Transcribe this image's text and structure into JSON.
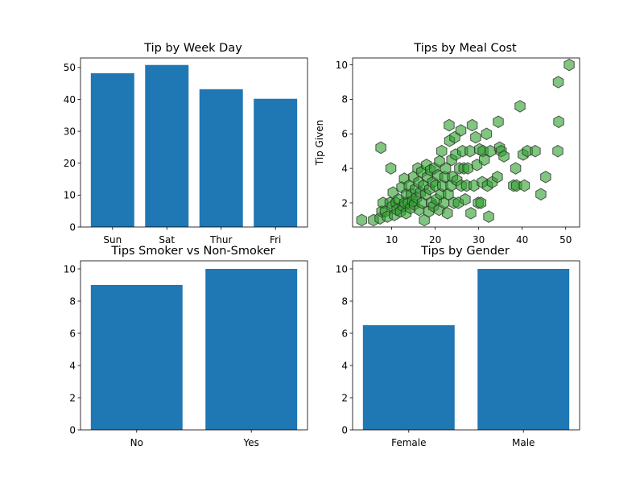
{
  "chart_data": [
    {
      "type": "bar",
      "title": "Tip by Week Day",
      "categories": [
        "Sun",
        "Sat",
        "Thur",
        "Fri"
      ],
      "values": [
        48.2,
        50.8,
        43.2,
        40.2
      ],
      "ylim": [
        0,
        53
      ],
      "yticks": [
        0,
        10,
        20,
        30,
        40,
        50
      ],
      "ylabel": "",
      "color": "#1f77b4",
      "grid": false
    },
    {
      "type": "scatter",
      "title": "Tips by Meal Cost",
      "xlabel": "",
      "ylabel": "Tip Given",
      "xlim": [
        1,
        53.2
      ],
      "ylim": [
        0.6,
        10.4
      ],
      "xticks": [
        10,
        20,
        30,
        40,
        50
      ],
      "yticks": [
        2,
        4,
        6,
        8,
        10
      ],
      "marker": "hexagon",
      "color": "#2ca02c",
      "edgecolor": "#2f2f2f",
      "alpha": 0.6,
      "grid": false,
      "points": [
        [
          3.1,
          1.0
        ],
        [
          5.8,
          1.0
        ],
        [
          7.3,
          1.1
        ],
        [
          7.5,
          5.2
        ],
        [
          7.7,
          1.5
        ],
        [
          8.0,
          2.0
        ],
        [
          8.5,
          1.5
        ],
        [
          9.0,
          1.2
        ],
        [
          9.6,
          2.0
        ],
        [
          9.8,
          4.0
        ],
        [
          10.1,
          1.8
        ],
        [
          10.3,
          2.6
        ],
        [
          10.6,
          1.3
        ],
        [
          11.0,
          2.0
        ],
        [
          11.2,
          1.6
        ],
        [
          11.6,
          2.2
        ],
        [
          12.0,
          1.5
        ],
        [
          12.3,
          2.9
        ],
        [
          12.6,
          1.8
        ],
        [
          12.9,
          3.4
        ],
        [
          13.0,
          2.0
        ],
        [
          13.3,
          1.4
        ],
        [
          13.4,
          2.5
        ],
        [
          13.8,
          2.0
        ],
        [
          14.0,
          3.0
        ],
        [
          14.3,
          1.7
        ],
        [
          14.5,
          2.5
        ],
        [
          14.8,
          2.1
        ],
        [
          15.0,
          3.5
        ],
        [
          15.2,
          1.9
        ],
        [
          15.4,
          2.8
        ],
        [
          15.7,
          2.3
        ],
        [
          16.0,
          4.0
        ],
        [
          16.2,
          3.2
        ],
        [
          16.3,
          1.6
        ],
        [
          16.6,
          2.6
        ],
        [
          16.9,
          3.8
        ],
        [
          17.0,
          2.0
        ],
        [
          17.3,
          3.0
        ],
        [
          17.5,
          1.0
        ],
        [
          17.8,
          2.5
        ],
        [
          18.0,
          4.2
        ],
        [
          18.2,
          3.5
        ],
        [
          18.5,
          1.5
        ],
        [
          18.7,
          2.8
        ],
        [
          18.9,
          3.9
        ],
        [
          19.1,
          2.0
        ],
        [
          19.4,
          3.2
        ],
        [
          19.6,
          1.8
        ],
        [
          19.8,
          4.0
        ],
        [
          20.1,
          3.0
        ],
        [
          20.3,
          2.2
        ],
        [
          20.6,
          3.6
        ],
        [
          20.9,
          1.6
        ],
        [
          21.0,
          4.4
        ],
        [
          21.3,
          2.5
        ],
        [
          21.5,
          5.0
        ],
        [
          21.7,
          3.0
        ],
        [
          22.0,
          2.0
        ],
        [
          22.2,
          3.5
        ],
        [
          22.4,
          4.0
        ],
        [
          22.8,
          1.4
        ],
        [
          23.0,
          2.5
        ],
        [
          23.2,
          6.5
        ],
        [
          23.3,
          5.6
        ],
        [
          23.6,
          3.0
        ],
        [
          23.8,
          4.5
        ],
        [
          24.0,
          3.5
        ],
        [
          24.3,
          2.0
        ],
        [
          24.5,
          5.8
        ],
        [
          24.7,
          4.8
        ],
        [
          25.0,
          3.3
        ],
        [
          25.3,
          2.0
        ],
        [
          25.6,
          4.0
        ],
        [
          25.9,
          6.2
        ],
        [
          26.0,
          3.0
        ],
        [
          26.3,
          5.0
        ],
        [
          26.6,
          4.0
        ],
        [
          26.9,
          2.2
        ],
        [
          27.2,
          3.0
        ],
        [
          27.5,
          4.0
        ],
        [
          28.0,
          5.0
        ],
        [
          28.2,
          1.4
        ],
        [
          28.5,
          6.5
        ],
        [
          28.9,
          3.0
        ],
        [
          29.3,
          5.8
        ],
        [
          29.6,
          4.2
        ],
        [
          29.9,
          2.0
        ],
        [
          30.2,
          5.1
        ],
        [
          30.5,
          2.0
        ],
        [
          30.8,
          3.2
        ],
        [
          31.0,
          5.0
        ],
        [
          31.3,
          4.5
        ],
        [
          31.8,
          6.0
        ],
        [
          32.0,
          3.0
        ],
        [
          32.3,
          1.2
        ],
        [
          32.7,
          5.0
        ],
        [
          33.1,
          3.2
        ],
        [
          34.3,
          3.5
        ],
        [
          34.5,
          6.7
        ],
        [
          34.8,
          5.2
        ],
        [
          35.2,
          5.0
        ],
        [
          35.8,
          4.7
        ],
        [
          38.0,
          3.0
        ],
        [
          38.5,
          4.0
        ],
        [
          38.7,
          3.0
        ],
        [
          39.5,
          7.6
        ],
        [
          40.2,
          4.8
        ],
        [
          40.5,
          3.0
        ],
        [
          41.2,
          5.0
        ],
        [
          43.0,
          5.0
        ],
        [
          44.3,
          2.5
        ],
        [
          45.4,
          3.5
        ],
        [
          48.2,
          5.0
        ],
        [
          48.3,
          9.0
        ],
        [
          48.4,
          6.7
        ],
        [
          50.8,
          10.0
        ]
      ]
    },
    {
      "type": "bar",
      "title": "Tips Smoker vs Non-Smoker",
      "categories": [
        "No",
        "Yes"
      ],
      "values": [
        9.0,
        10.0
      ],
      "ylim": [
        0,
        10.5
      ],
      "yticks": [
        0,
        2,
        4,
        6,
        8,
        10
      ],
      "ylabel": "",
      "color": "#1f77b4",
      "grid": false
    },
    {
      "type": "bar",
      "title": "Tips by Gender",
      "categories": [
        "Female",
        "Male"
      ],
      "values": [
        6.5,
        10.0
      ],
      "ylim": [
        0,
        10.5
      ],
      "yticks": [
        0,
        2,
        4,
        6,
        8,
        10
      ],
      "ylabel": "",
      "color": "#1f77b4",
      "grid": false
    }
  ]
}
